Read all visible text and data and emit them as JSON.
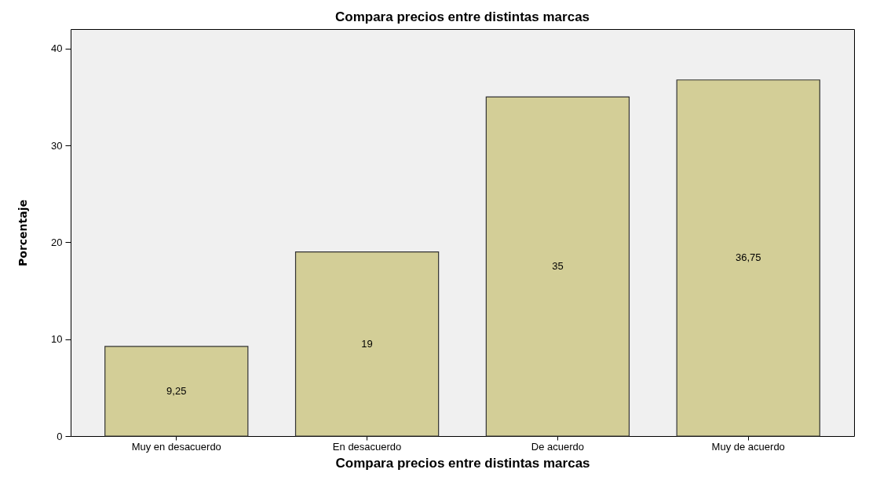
{
  "chart_data": {
    "type": "bar",
    "title": "Compara precios entre distintas marcas",
    "xlabel": "Compara precios entre distintas marcas",
    "ylabel": "Porcentaje",
    "categories": [
      "Muy en desacuerdo",
      "En desacuerdo",
      "De acuerdo",
      "Muy de acuerdo"
    ],
    "values": [
      9.25,
      19,
      35,
      36.75
    ],
    "color": "#d3ce97",
    "value_labels": [
      "9,25",
      "19",
      "35",
      "36,75"
    ],
    "ylim": [
      0,
      42
    ],
    "yticks": [
      0,
      10,
      20,
      30,
      40
    ]
  }
}
